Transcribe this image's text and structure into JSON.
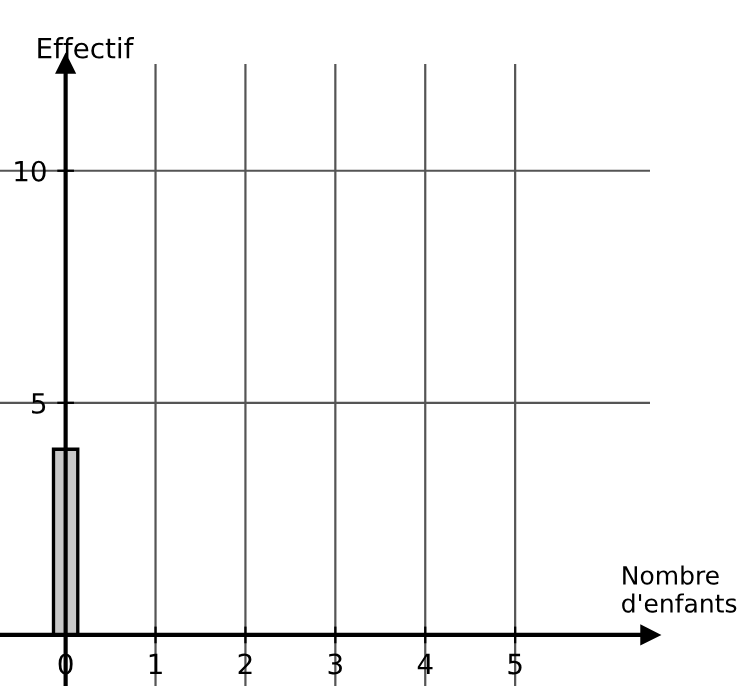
{
  "chart_data": {
    "type": "bar",
    "xlabel": "Nombre\nd'enfants",
    "ylabel": "Effectif",
    "x": [
      0
    ],
    "values": [
      4
    ],
    "color": "#c8c8c8",
    "xlim": [
      -0.73,
      6.5
    ],
    "ylim": [
      -1.1,
      12.3
    ],
    "xticks": [
      0,
      1,
      2,
      3,
      4,
      5
    ],
    "yticks": [
      5,
      10
    ],
    "grid": true
  }
}
